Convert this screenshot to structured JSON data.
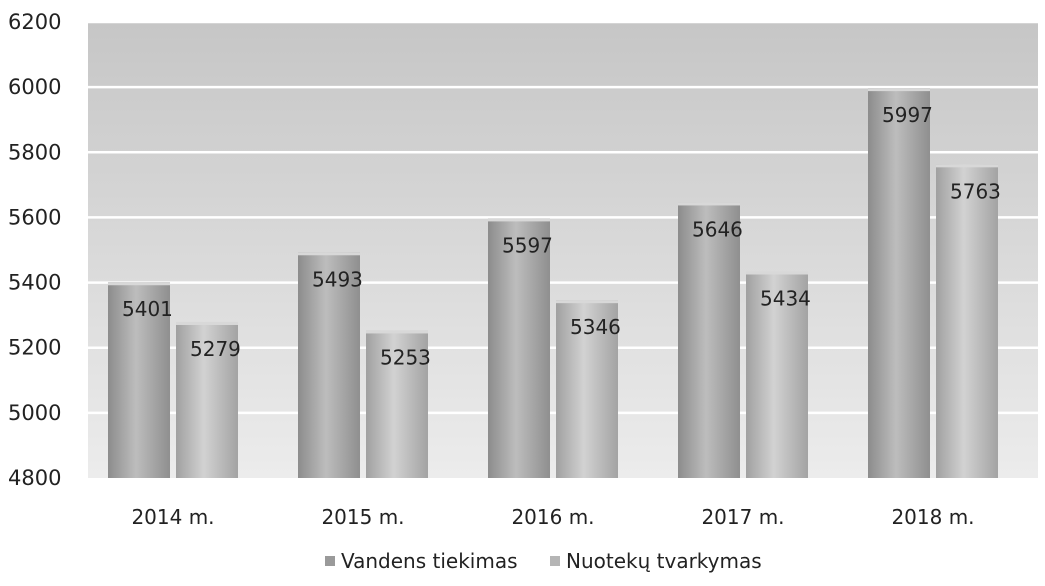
{
  "chart_data": {
    "type": "bar",
    "title": "",
    "xlabel": "",
    "ylabel": "",
    "categories": [
      "2014 m.",
      "2015 m.",
      "2016 m.",
      "2017 m.",
      "2018 m."
    ],
    "series": [
      {
        "name": "Vandens tiekimas",
        "values": [
          5401,
          5493,
          5597,
          5646,
          5997
        ],
        "color": "#9a9a9a"
      },
      {
        "name": "Nuotekų tvarkymas",
        "values": [
          5279,
          5253,
          5346,
          5434,
          5763
        ],
        "color": "#a8a8a8"
      }
    ],
    "ylim": [
      4800,
      6200
    ],
    "yticks": [
      4800,
      5000,
      5200,
      5400,
      5600,
      5800,
      6000,
      6200
    ],
    "grid": true,
    "legend_position": "bottom",
    "data_labels": true
  }
}
